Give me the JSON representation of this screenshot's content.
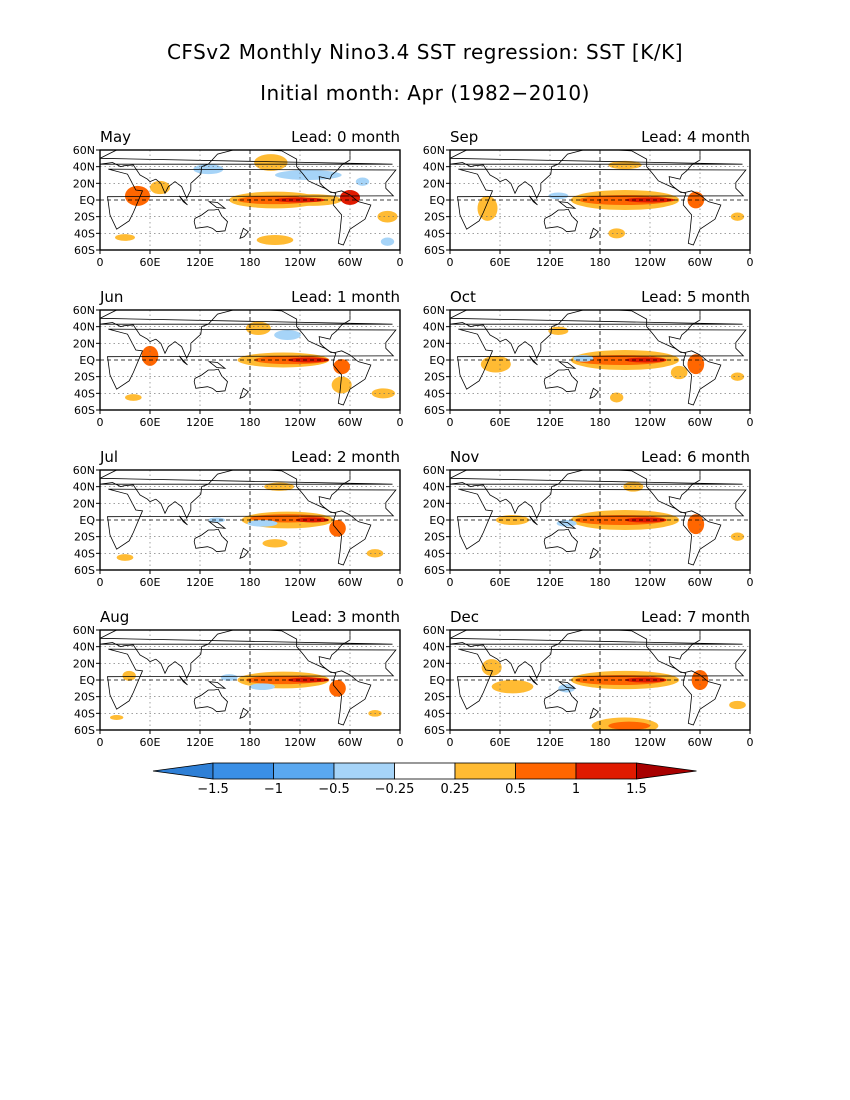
{
  "figure": {
    "title": "CFSv2 Monthly Nino3.4 SST regression: SST [K/K]",
    "subtitle": "Initial month: Apr (1982−2010)"
  },
  "lon_ticks": [
    "0",
    "60E",
    "120E",
    "180",
    "120W",
    "60W",
    "0"
  ],
  "lat_ticks": [
    "60N",
    "40N",
    "20N",
    "EQ",
    "20S",
    "40S",
    "60S"
  ],
  "panels": [
    {
      "month": "May",
      "lead": "Lead: 0 month"
    },
    {
      "month": "Jun",
      "lead": "Lead: 1 month"
    },
    {
      "month": "Jul",
      "lead": "Lead: 2 month"
    },
    {
      "month": "Aug",
      "lead": "Lead: 3 month"
    },
    {
      "month": "Sep",
      "lead": "Lead: 4 month"
    },
    {
      "month": "Oct",
      "lead": "Lead: 5 month"
    },
    {
      "month": "Nov",
      "lead": "Lead: 6 month"
    },
    {
      "month": "Dec",
      "lead": "Lead: 7 month"
    }
  ],
  "colorbar": {
    "labels": [
      "−1.5",
      "−1",
      "−0.5",
      "−0.25",
      "0.25",
      "0.5",
      "1",
      "1.5"
    ],
    "colors": [
      "#2e7fd6",
      "#3a8fe6",
      "#5aa8f0",
      "#a6d4f8",
      "#ffffff",
      "#ffbb33",
      "#ff6600",
      "#e01a00",
      "#a80000"
    ]
  }
}
